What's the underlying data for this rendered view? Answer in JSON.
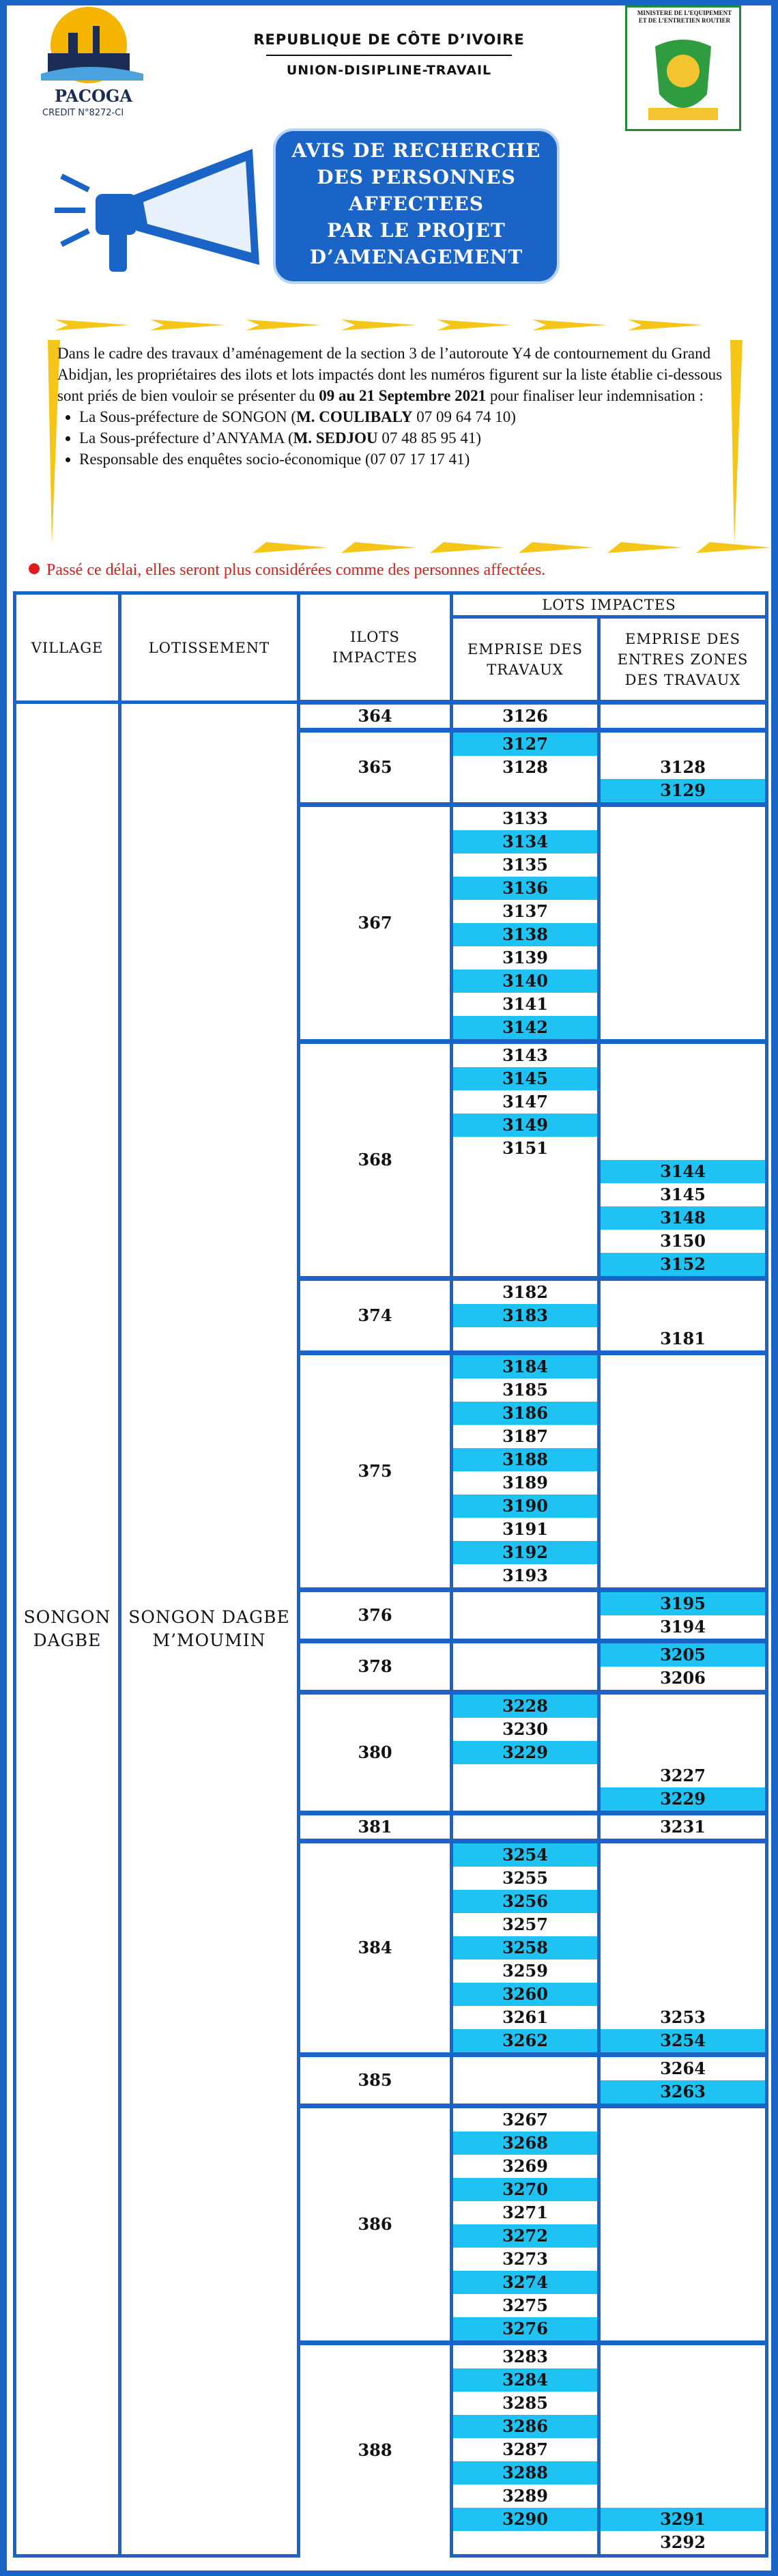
{
  "header": {
    "logo_name": "PACOGA",
    "logo_sub": "CREDIT N°8272-CI",
    "republic": "REPUBLIQUE DE CÔTE D’IVOIRE",
    "motto": "UNION-DISIPLINE-TRAVAIL",
    "ministry": "MINISTERE DE L’EQUIPEMENT ET DE L’ENTRETIEN ROUTIER"
  },
  "notice": {
    "title_lines": [
      "AVIS DE RECHERCHE",
      "DES PERSONNES",
      "AFFECTEES",
      "PAR LE PROJET",
      "D’AMENAGEMENT"
    ]
  },
  "intro": {
    "paragraph": [
      {
        "text": "Dans le cadre des travaux d’aménagement de la section 3 de l’autoroute Y4 de contournement du Grand Abidjan, les propriétaires des ilots et lots impactés dont les numéros figurent sur la liste établie ci-dessous sont priés de bien vouloir se présenter du ",
        "bold": false
      },
      {
        "text": "09 au 21 Septembre 2021",
        "bold": true
      },
      {
        "text": " pour finaliser leur indemnisation :",
        "bold": false
      }
    ],
    "bullets": [
      [
        {
          "text": "La Sous-préfecture de SONGON (",
          "bold": false
        },
        {
          "text": "M. COULIBALY",
          "bold": true
        },
        {
          "text": " 07 09 64 74 10)",
          "bold": false
        }
      ],
      [
        {
          "text": "La Sous-préfecture d’ANYAMA (",
          "bold": false
        },
        {
          "text": "M. SEDJOU",
          "bold": true
        },
        {
          "text": " 07 48 85 95 41)",
          "bold": false
        }
      ],
      [
        {
          "text": "Responsable des enquêtes socio-économique (07 07 17 17 41)",
          "bold": false
        }
      ]
    ]
  },
  "warning": "Passé ce délai, elles seront plus considérées comme des personnes affectées.",
  "table": {
    "headers": {
      "village": "VILLAGE",
      "lotissement": "LOTISSEMENT",
      "ilots": "ILOTS IMPACTES",
      "lots": "LOTS IMPACTES",
      "travaux": "EMPRISE DES TRAVAUX",
      "entre": "EMPRISE DES ENTRES ZONES DES TRAVAUX"
    },
    "village": "SONGON DAGBE",
    "lotissement": "SONGON DAGBE M’MOUMIN",
    "groups": [
      {
        "ilot": 364,
        "rows": [
          [
            3126,
            null,
            false
          ]
        ]
      },
      {
        "ilot": 365,
        "rows": [
          [
            3127,
            null,
            true
          ],
          [
            3128,
            3128,
            false
          ],
          [
            null,
            3129,
            true
          ]
        ]
      },
      {
        "ilot": 367,
        "rows": [
          [
            3133,
            null,
            false
          ],
          [
            3134,
            null,
            true
          ],
          [
            3135,
            null,
            false
          ],
          [
            3136,
            null,
            true
          ],
          [
            3137,
            null,
            false
          ],
          [
            3138,
            null,
            true
          ],
          [
            3139,
            null,
            false
          ],
          [
            3140,
            null,
            true
          ],
          [
            3141,
            null,
            false
          ],
          [
            3142,
            null,
            true
          ]
        ]
      },
      {
        "ilot": 368,
        "rows": [
          [
            3143,
            null,
            false
          ],
          [
            3145,
            null,
            true
          ],
          [
            3147,
            null,
            false
          ],
          [
            3149,
            null,
            true
          ],
          [
            3151,
            null,
            false
          ],
          [
            null,
            3144,
            true
          ],
          [
            null,
            3145,
            false
          ],
          [
            null,
            3148,
            true
          ],
          [
            null,
            3150,
            false
          ],
          [
            null,
            3152,
            true
          ]
        ]
      },
      {
        "ilot": 374,
        "rows": [
          [
            3182,
            null,
            false
          ],
          [
            3183,
            null,
            true
          ],
          [
            null,
            3181,
            false
          ]
        ]
      },
      {
        "ilot": 375,
        "rows": [
          [
            3184,
            null,
            true
          ],
          [
            3185,
            null,
            false
          ],
          [
            3186,
            null,
            true
          ],
          [
            3187,
            null,
            false
          ],
          [
            3188,
            null,
            true
          ],
          [
            3189,
            null,
            false
          ],
          [
            3190,
            null,
            true
          ],
          [
            3191,
            null,
            false
          ],
          [
            3192,
            null,
            true
          ],
          [
            3193,
            null,
            false
          ]
        ]
      },
      {
        "ilot": 376,
        "rows": [
          [
            null,
            3195,
            true
          ],
          [
            null,
            3194,
            false
          ]
        ]
      },
      {
        "ilot": 378,
        "rows": [
          [
            null,
            3205,
            true
          ],
          [
            null,
            3206,
            false
          ]
        ]
      },
      {
        "ilot": 380,
        "rows": [
          [
            3228,
            null,
            true
          ],
          [
            3230,
            null,
            false
          ],
          [
            3229,
            null,
            true
          ],
          [
            null,
            3227,
            false
          ],
          [
            null,
            3229,
            true
          ]
        ]
      },
      {
        "ilot": 381,
        "rows": [
          [
            null,
            3231,
            false
          ]
        ]
      },
      {
        "ilot": 384,
        "rows": [
          [
            3254,
            null,
            true
          ],
          [
            3255,
            null,
            false
          ],
          [
            3256,
            null,
            true
          ],
          [
            3257,
            null,
            false
          ],
          [
            3258,
            null,
            true
          ],
          [
            3259,
            null,
            false
          ],
          [
            3260,
            null,
            true
          ],
          [
            3261,
            3253,
            false
          ],
          [
            3262,
            3254,
            true
          ]
        ]
      },
      {
        "ilot": 385,
        "rows": [
          [
            null,
            3264,
            false
          ],
          [
            null,
            3263,
            true
          ]
        ]
      },
      {
        "ilot": 386,
        "rows": [
          [
            3267,
            null,
            false
          ],
          [
            3268,
            null,
            true
          ],
          [
            3269,
            null,
            false
          ],
          [
            3270,
            null,
            true
          ],
          [
            3271,
            null,
            false
          ],
          [
            3272,
            null,
            true
          ],
          [
            3273,
            null,
            false
          ],
          [
            3274,
            null,
            true
          ],
          [
            3275,
            null,
            false
          ],
          [
            3276,
            null,
            true
          ]
        ]
      },
      {
        "ilot": 388,
        "rows": [
          [
            3283,
            null,
            false
          ],
          [
            3284,
            null,
            true
          ],
          [
            3285,
            null,
            false
          ],
          [
            3286,
            null,
            true
          ],
          [
            3287,
            null,
            false
          ],
          [
            3288,
            null,
            true
          ],
          [
            3289,
            null,
            false
          ],
          [
            3290,
            3291,
            true
          ],
          [
            null,
            3292,
            false
          ]
        ]
      }
    ]
  }
}
